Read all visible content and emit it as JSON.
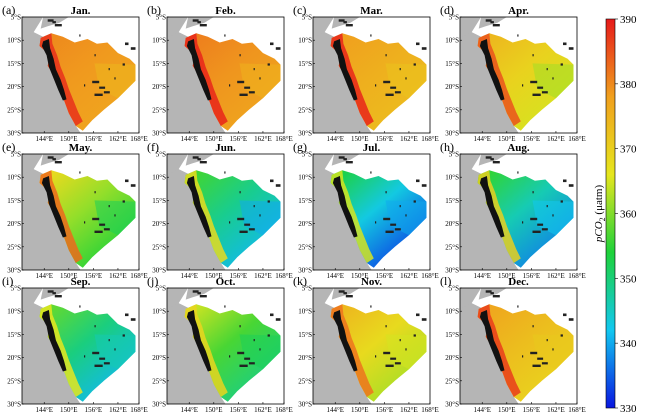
{
  "figure": {
    "colorbar": {
      "label_prefix": "pCO",
      "label_subscript": "2",
      "label_suffix": " (μatm)",
      "min": 330,
      "max": 390,
      "ticks": [
        "390",
        "380",
        "370",
        "360",
        "350",
        "340",
        "330"
      ],
      "colormap": [
        "#0a16e0",
        "#12c8f0",
        "#1ed23a",
        "#e6e61e",
        "#f0a01e",
        "#e61a1a"
      ]
    },
    "axes": {
      "x_ticks": [
        "144°E",
        "150°E",
        "156°E",
        "162°E",
        "168°E"
      ],
      "y_ticks": [
        "5°S",
        "10°S",
        "15°S",
        "20°S",
        "25°S",
        "30°S"
      ]
    },
    "land_color": "#b5b5b5",
    "panels": [
      {
        "tag": "(a)",
        "month": "Jan.",
        "coast": 388,
        "north": 380,
        "south": 377,
        "se": 374
      },
      {
        "tag": "(b)",
        "month": "Feb.",
        "coast": 389,
        "north": 381,
        "south": 377,
        "se": 375
      },
      {
        "tag": "(c)",
        "month": "Mar.",
        "coast": 389,
        "north": 378,
        "south": 373,
        "se": 372
      },
      {
        "tag": "(d)",
        "month": "Apr.",
        "coast": 385,
        "north": 374,
        "south": 365,
        "se": 362
      },
      {
        "tag": "(e)",
        "month": "May.",
        "coast": 383,
        "north": 368,
        "south": 354,
        "se": 352
      },
      {
        "tag": "(f)",
        "month": "Jun.",
        "coast": 368,
        "north": 356,
        "south": 341,
        "se": 340
      },
      {
        "tag": "(g)",
        "month": "Jul.",
        "coast": 365,
        "north": 353,
        "south": 333,
        "se": 340
      },
      {
        "tag": "(h)",
        "month": "Aug.",
        "coast": 370,
        "north": 355,
        "south": 337,
        "se": 342
      },
      {
        "tag": "(i)",
        "month": "Sep.",
        "coast": 366,
        "north": 358,
        "south": 341,
        "se": 346
      },
      {
        "tag": "(j)",
        "month": "Oct.",
        "coast": 369,
        "north": 364,
        "south": 349,
        "se": 352
      },
      {
        "tag": "(k)",
        "month": "Nov.",
        "coast": 382,
        "north": 374,
        "south": 362,
        "se": 365
      },
      {
        "tag": "(l)",
        "month": "Dec.",
        "coast": 387,
        "north": 377,
        "south": 369,
        "se": 371
      }
    ]
  }
}
